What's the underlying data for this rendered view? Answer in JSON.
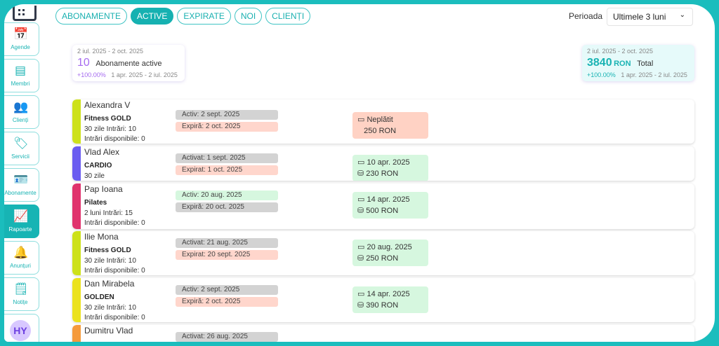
{
  "sidebar": {
    "items": [
      {
        "label": "Agende",
        "icon": "calendar-icon"
      },
      {
        "label": "Membri",
        "icon": "members-icon"
      },
      {
        "label": "Clienți",
        "icon": "users-icon"
      },
      {
        "label": "Servicii",
        "icon": "tag-icon"
      },
      {
        "label": "Abonamente",
        "icon": "id-card-icon"
      },
      {
        "label": "Rapoarte",
        "icon": "chart-line-icon",
        "active": true
      },
      {
        "label": "Anunțuri",
        "icon": "bell-icon"
      },
      {
        "label": "Notițe",
        "icon": "note-icon"
      }
    ],
    "avatar": "HY"
  },
  "tabs": [
    {
      "label": "ABONAMENTE"
    },
    {
      "label": "ACTIVE",
      "active": true
    },
    {
      "label": "EXPIRATE"
    },
    {
      "label": "NOI"
    },
    {
      "label": "CLIENȚI"
    }
  ],
  "period": {
    "label": "Perioada",
    "value": "Ultimele 3 luni"
  },
  "stats": [
    {
      "range": "2 iul. 2025 - 2 oct. 2025",
      "value": "10",
      "label": "Abonamente active",
      "change": "+100.00%",
      "prev_range": "1 apr. 2025 - 2 iul. 2025",
      "color": "#a66bf0"
    },
    {
      "range": "2 iul. 2025 - 2 oct. 2025",
      "value": "3840",
      "unit": "RON",
      "label": "Total",
      "change": "+100.00%",
      "prev_range": "1 apr. 2025 - 2 iul. 2025",
      "color": "#19b3b3"
    }
  ],
  "rows": [
    {
      "name": "Alexandra V",
      "plan": "Fitness GOLD",
      "details": "30 zile  Intrări: 10",
      "available": "Intrări disponibile: 0",
      "status1": "Activ: 2 sept. 2025",
      "status2": "Expiră: 2 oct. 2025",
      "pay_date": "Neplătit",
      "amount": "250 RON",
      "color": "#cde11a"
    },
    {
      "name": "Vlad Alex",
      "plan": "CARDIO",
      "details": "30 zile",
      "available": "",
      "status1": "Activat: 1 sept. 2025",
      "status2": "Expirat: 1 oct. 2025",
      "pay_date": "10 apr. 2025",
      "amount": "230 RON",
      "color": "#6a5cf0"
    },
    {
      "name": "Pap Ioana",
      "plan": "Pilates",
      "details": "2 luni  Intrări: 15",
      "available": "Intrări disponibile: 0",
      "status1": "Activ: 20 aug. 2025",
      "status2": "Expiră: 20 oct. 2025",
      "pay_date": "14 apr. 2025",
      "amount": "500 RON",
      "color": "#e0336d"
    },
    {
      "name": "Ilie Mona",
      "plan": "Fitness GOLD",
      "details": "30 zile  Intrări: 10",
      "available": "Intrări disponibile: 0",
      "status1": "Activat: 21 aug. 2025",
      "status2": "Expirat: 20 sept. 2025",
      "pay_date": "20 aug. 2025",
      "amount": "250 RON",
      "color": "#cde11a"
    },
    {
      "name": "Dan Mirabela",
      "plan": "GOLDEN",
      "details": "30 zile  Intrări: 10",
      "available": "Intrări disponibile: 0",
      "status1": "Activ: 2 sept. 2025",
      "status2": "Expiră: 2 oct. 2025",
      "pay_date": "14 apr. 2025",
      "amount": "390 RON",
      "color": "#ebe21e"
    },
    {
      "name": "Dumitru Vlad",
      "plan": "",
      "details": "",
      "available": "",
      "status1": "Activat: 26 aug. 2025",
      "status2": "",
      "pay_date": "",
      "amount": "",
      "color": "#f59a3c"
    }
  ]
}
